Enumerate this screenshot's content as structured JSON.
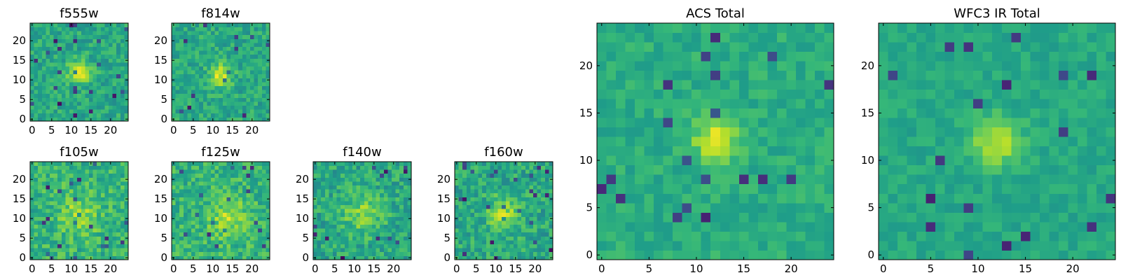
{
  "chart_data": [
    {
      "type": "heatmap",
      "title": "f555w",
      "grid_size": 25,
      "colormap": "viridis",
      "grid": false,
      "x_ticks": [
        "0",
        "5",
        "10",
        "15",
        "20"
      ],
      "y_ticks": [
        "0",
        "5",
        "10",
        "15",
        "20"
      ],
      "xlim": [
        -0.5,
        24.5
      ],
      "ylim": [
        -0.5,
        24.5
      ],
      "source_center": [
        12,
        12
      ],
      "source_sigma": 2.0,
      "source_peak": 0.35,
      "noise": 0.12,
      "background": 0.6
    },
    {
      "type": "heatmap",
      "title": "f814w",
      "grid_size": 25,
      "colormap": "viridis",
      "grid": false,
      "x_ticks": [
        "0",
        "5",
        "10",
        "15",
        "20"
      ],
      "y_ticks": [
        "0",
        "5",
        "10",
        "15",
        "20"
      ],
      "xlim": [
        -0.5,
        24.5
      ],
      "ylim": [
        -0.5,
        24.5
      ],
      "source_center": [
        12,
        11
      ],
      "source_sigma": 2.0,
      "source_peak": 0.35,
      "noise": 0.12,
      "background": 0.6
    },
    {
      "type": "heatmap",
      "title": "f105w",
      "grid_size": 25,
      "colormap": "viridis",
      "grid": false,
      "x_ticks": [
        "0",
        "5",
        "10",
        "15",
        "20"
      ],
      "y_ticks": [
        "0",
        "5",
        "10",
        "15",
        "20"
      ],
      "xlim": [
        -0.5,
        24.5
      ],
      "ylim": [
        -0.5,
        24.5
      ],
      "source_center": [
        12,
        11
      ],
      "source_sigma": 3.5,
      "source_peak": 0.2,
      "noise": 0.14,
      "background": 0.65
    },
    {
      "type": "heatmap",
      "title": "f125w",
      "grid_size": 25,
      "colormap": "viridis",
      "grid": false,
      "x_ticks": [
        "0",
        "5",
        "10",
        "15",
        "20"
      ],
      "y_ticks": [
        "0",
        "5",
        "10",
        "15",
        "20"
      ],
      "xlim": [
        -0.5,
        24.5
      ],
      "ylim": [
        -0.5,
        24.5
      ],
      "source_center": [
        14,
        10
      ],
      "source_sigma": 3.5,
      "source_peak": 0.2,
      "noise": 0.14,
      "background": 0.65
    },
    {
      "type": "heatmap",
      "title": "f140w",
      "grid_size": 25,
      "colormap": "viridis",
      "grid": false,
      "x_ticks": [
        "0",
        "5",
        "10",
        "15",
        "20"
      ],
      "y_ticks": [
        "0",
        "5",
        "10",
        "15",
        "20"
      ],
      "xlim": [
        -0.5,
        24.5
      ],
      "ylim": [
        -0.5,
        24.5
      ],
      "source_center": [
        12,
        11
      ],
      "source_sigma": 3.5,
      "source_peak": 0.2,
      "noise": 0.14,
      "background": 0.6
    },
    {
      "type": "heatmap",
      "title": "f160w",
      "grid_size": 25,
      "colormap": "viridis",
      "grid": false,
      "x_ticks": [
        "0",
        "5",
        "10",
        "15",
        "20"
      ],
      "y_ticks": [
        "0",
        "5",
        "10",
        "15",
        "20"
      ],
      "xlim": [
        -0.5,
        24.5
      ],
      "ylim": [
        -0.5,
        24.5
      ],
      "source_center": [
        12,
        11
      ],
      "source_sigma": 3.0,
      "source_peak": 0.25,
      "noise": 0.14,
      "background": 0.6
    },
    {
      "type": "heatmap",
      "title": "ACS Total",
      "grid_size": 25,
      "colormap": "viridis",
      "grid": false,
      "x_ticks": [
        "0",
        "5",
        "10",
        "15",
        "20"
      ],
      "y_ticks": [
        "0",
        "5",
        "10",
        "15",
        "20"
      ],
      "xlim": [
        -0.5,
        24.5
      ],
      "ylim": [
        -0.5,
        24.5
      ],
      "source_center": [
        12,
        12
      ],
      "source_sigma": 1.6,
      "source_peak": 0.35,
      "noise": 0.08,
      "background": 0.62
    },
    {
      "type": "heatmap",
      "title": "WFC3 IR Total",
      "grid_size": 25,
      "colormap": "viridis",
      "grid": false,
      "x_ticks": [
        "0",
        "5",
        "10",
        "15",
        "20"
      ],
      "y_ticks": [
        "0",
        "5",
        "10",
        "15",
        "20"
      ],
      "xlim": [
        -0.5,
        24.5
      ],
      "ylim": [
        -0.5,
        24.5
      ],
      "source_center": [
        12,
        12
      ],
      "source_sigma": 1.8,
      "source_peak": 0.3,
      "noise": 0.07,
      "background": 0.6
    }
  ]
}
